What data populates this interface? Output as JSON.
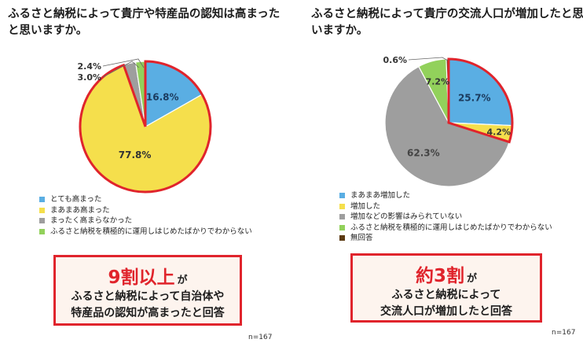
{
  "chart_data": [
    {
      "type": "pie",
      "title": "ふるさと納税によって貴庁や特産品の認知は高まったと思いますか。",
      "title_lines": [
        "ふるさと納税によって貴庁や特産品の認知は高まった",
        "と思いますか。"
      ],
      "categories": [
        "とても高まった",
        "まあまあ高まった",
        "まったく高まらなかった",
        "ふるさと納税を積極的に運用しはじめたばかりでわからない"
      ],
      "values": [
        16.8,
        77.8,
        3.0,
        2.4
      ],
      "labels": [
        "16.8%",
        "77.8%",
        "3.0%",
        "2.4%"
      ],
      "colors": [
        "#5aaee3",
        "#f5df4c",
        "#9e9e9e",
        "#92d15b"
      ],
      "highlighted": [
        0,
        1
      ],
      "n": "n=167"
    },
    {
      "type": "pie",
      "title": "ふるさと納税によって貴庁の交流人口が増加したと思いますか。",
      "title_lines": [
        "ふるさと納税によって貴庁の交流人口が増加したと思",
        "いますか。"
      ],
      "categories": [
        "まあまあ増加した",
        "増加した",
        "増加などの影響はみられていない",
        "ふるさと納税を積極的に運用しはじめたばかりでわからない",
        "無回答"
      ],
      "values": [
        25.7,
        4.2,
        62.3,
        7.2,
        0.6
      ],
      "labels": [
        "25.7%",
        "4.2%",
        "62.3%",
        "7.2%",
        "0.6%"
      ],
      "colors": [
        "#5aaee3",
        "#f5df4c",
        "#9e9e9e",
        "#92d15b",
        "#5c3a12"
      ],
      "highlighted": [
        0,
        1
      ],
      "n": "n=167"
    }
  ],
  "colors": {
    "highlight": "#e0242c",
    "callout_bg": "#fdf4ee"
  },
  "left_callout": {
    "headline": "9割以上",
    "headline_suffix": "が",
    "body_lines": [
      "ふるさと納税によって自治体や",
      "特産品の認知が高まったと回答"
    ]
  },
  "right_callout": {
    "headline": "約3割",
    "headline_suffix": "が",
    "body_lines": [
      "ふるさと納税によって",
      "交流人口が増加したと回答"
    ]
  }
}
